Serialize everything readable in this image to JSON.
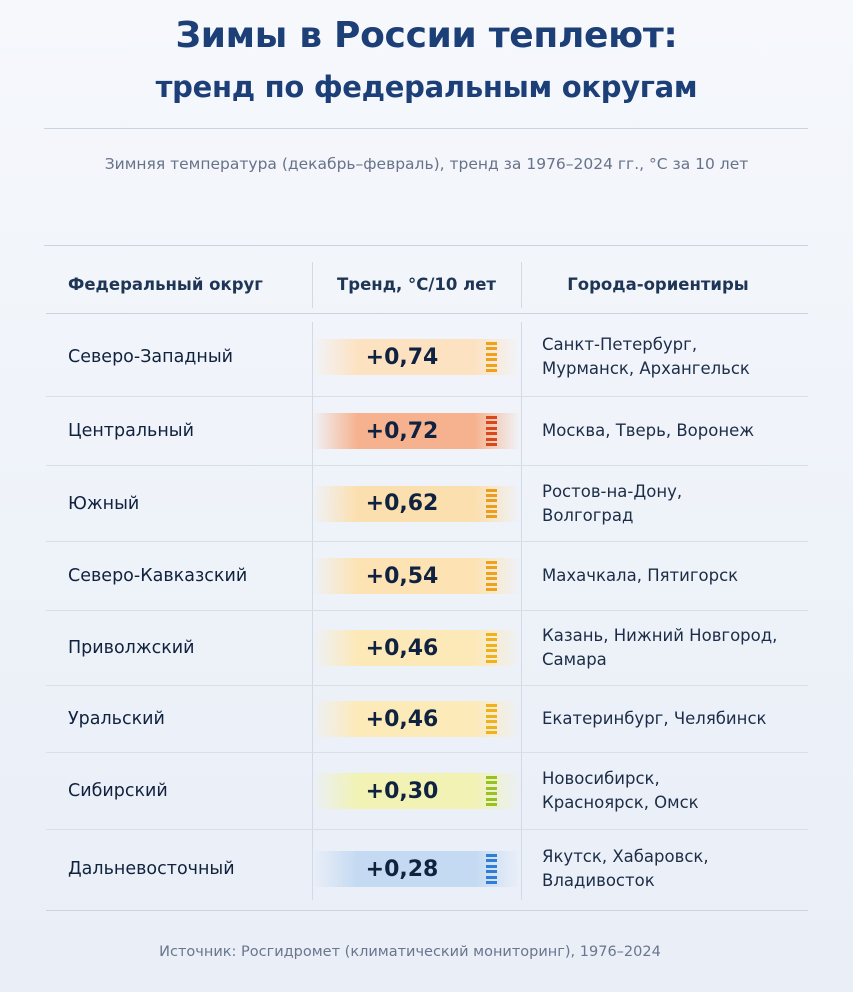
{
  "title": {
    "line1": "Зимы в России теплеют:",
    "line2": "тренд по федеральным округам"
  },
  "subtitle": "Зимняя температура (декабрь–февраль), тренд за 1976–2024 гг., °C за 10 лет",
  "table": {
    "headers": {
      "district": "Федеральный округ",
      "trend": "Тренд, °C/10 лет",
      "cities": "Города-ориентиры"
    },
    "rows": [
      {
        "district": "Северо-Западный",
        "trend": "+0,74",
        "cities_line1": "Санкт-Петербург,",
        "cities_line2": "Мурманск, Архангельск",
        "color": "#f0a11a",
        "band": "#fde2c2"
      },
      {
        "district": "Центральный",
        "trend": "+0,72",
        "cities_line1": "Москва, Тверь, Воронеж",
        "cities_line2": "",
        "color": "#d9481a",
        "band": "#f6b28e"
      },
      {
        "district": "Южный",
        "trend": "+0,62",
        "cities_line1": "Ростов-на-Дону,",
        "cities_line2": "Волгоград",
        "color": "#eb9d1b",
        "band": "#fcdfae"
      },
      {
        "district": "Северо-Кавказский",
        "trend": "+0,54",
        "cities_line1": "Махачкала, Пятигорск",
        "cities_line2": "",
        "color": "#eda11c",
        "band": "#fde3b3"
      },
      {
        "district": "Приволжский",
        "trend": "+0,46",
        "cities_line1": "Казань, Нижний Новгород,",
        "cities_line2": "Самара",
        "color": "#f0b11c",
        "band": "#fde9b8"
      },
      {
        "district": "Уральский",
        "trend": "+0,46",
        "cities_line1": "Екатеринбург, Челябинск",
        "cities_line2": "",
        "color": "#f0b11c",
        "band": "#fdeab9"
      },
      {
        "district": "Сибирский",
        "trend": "+0,30",
        "cities_line1": "Новосибирск,",
        "cities_line2": "Красноярск, Омск",
        "color": "#98c21f",
        "band": "#f1f2b4"
      },
      {
        "district": "Дальневосточный",
        "trend": "+0,28",
        "cities_line1": "Якутск, Хабаровск,",
        "cities_line2": "Владивосток",
        "color": "#2f7fd6",
        "band": "#c4daf2"
      }
    ]
  },
  "source": "Источник: Росгидромет (климатический мониторинг), 1976–2024"
}
